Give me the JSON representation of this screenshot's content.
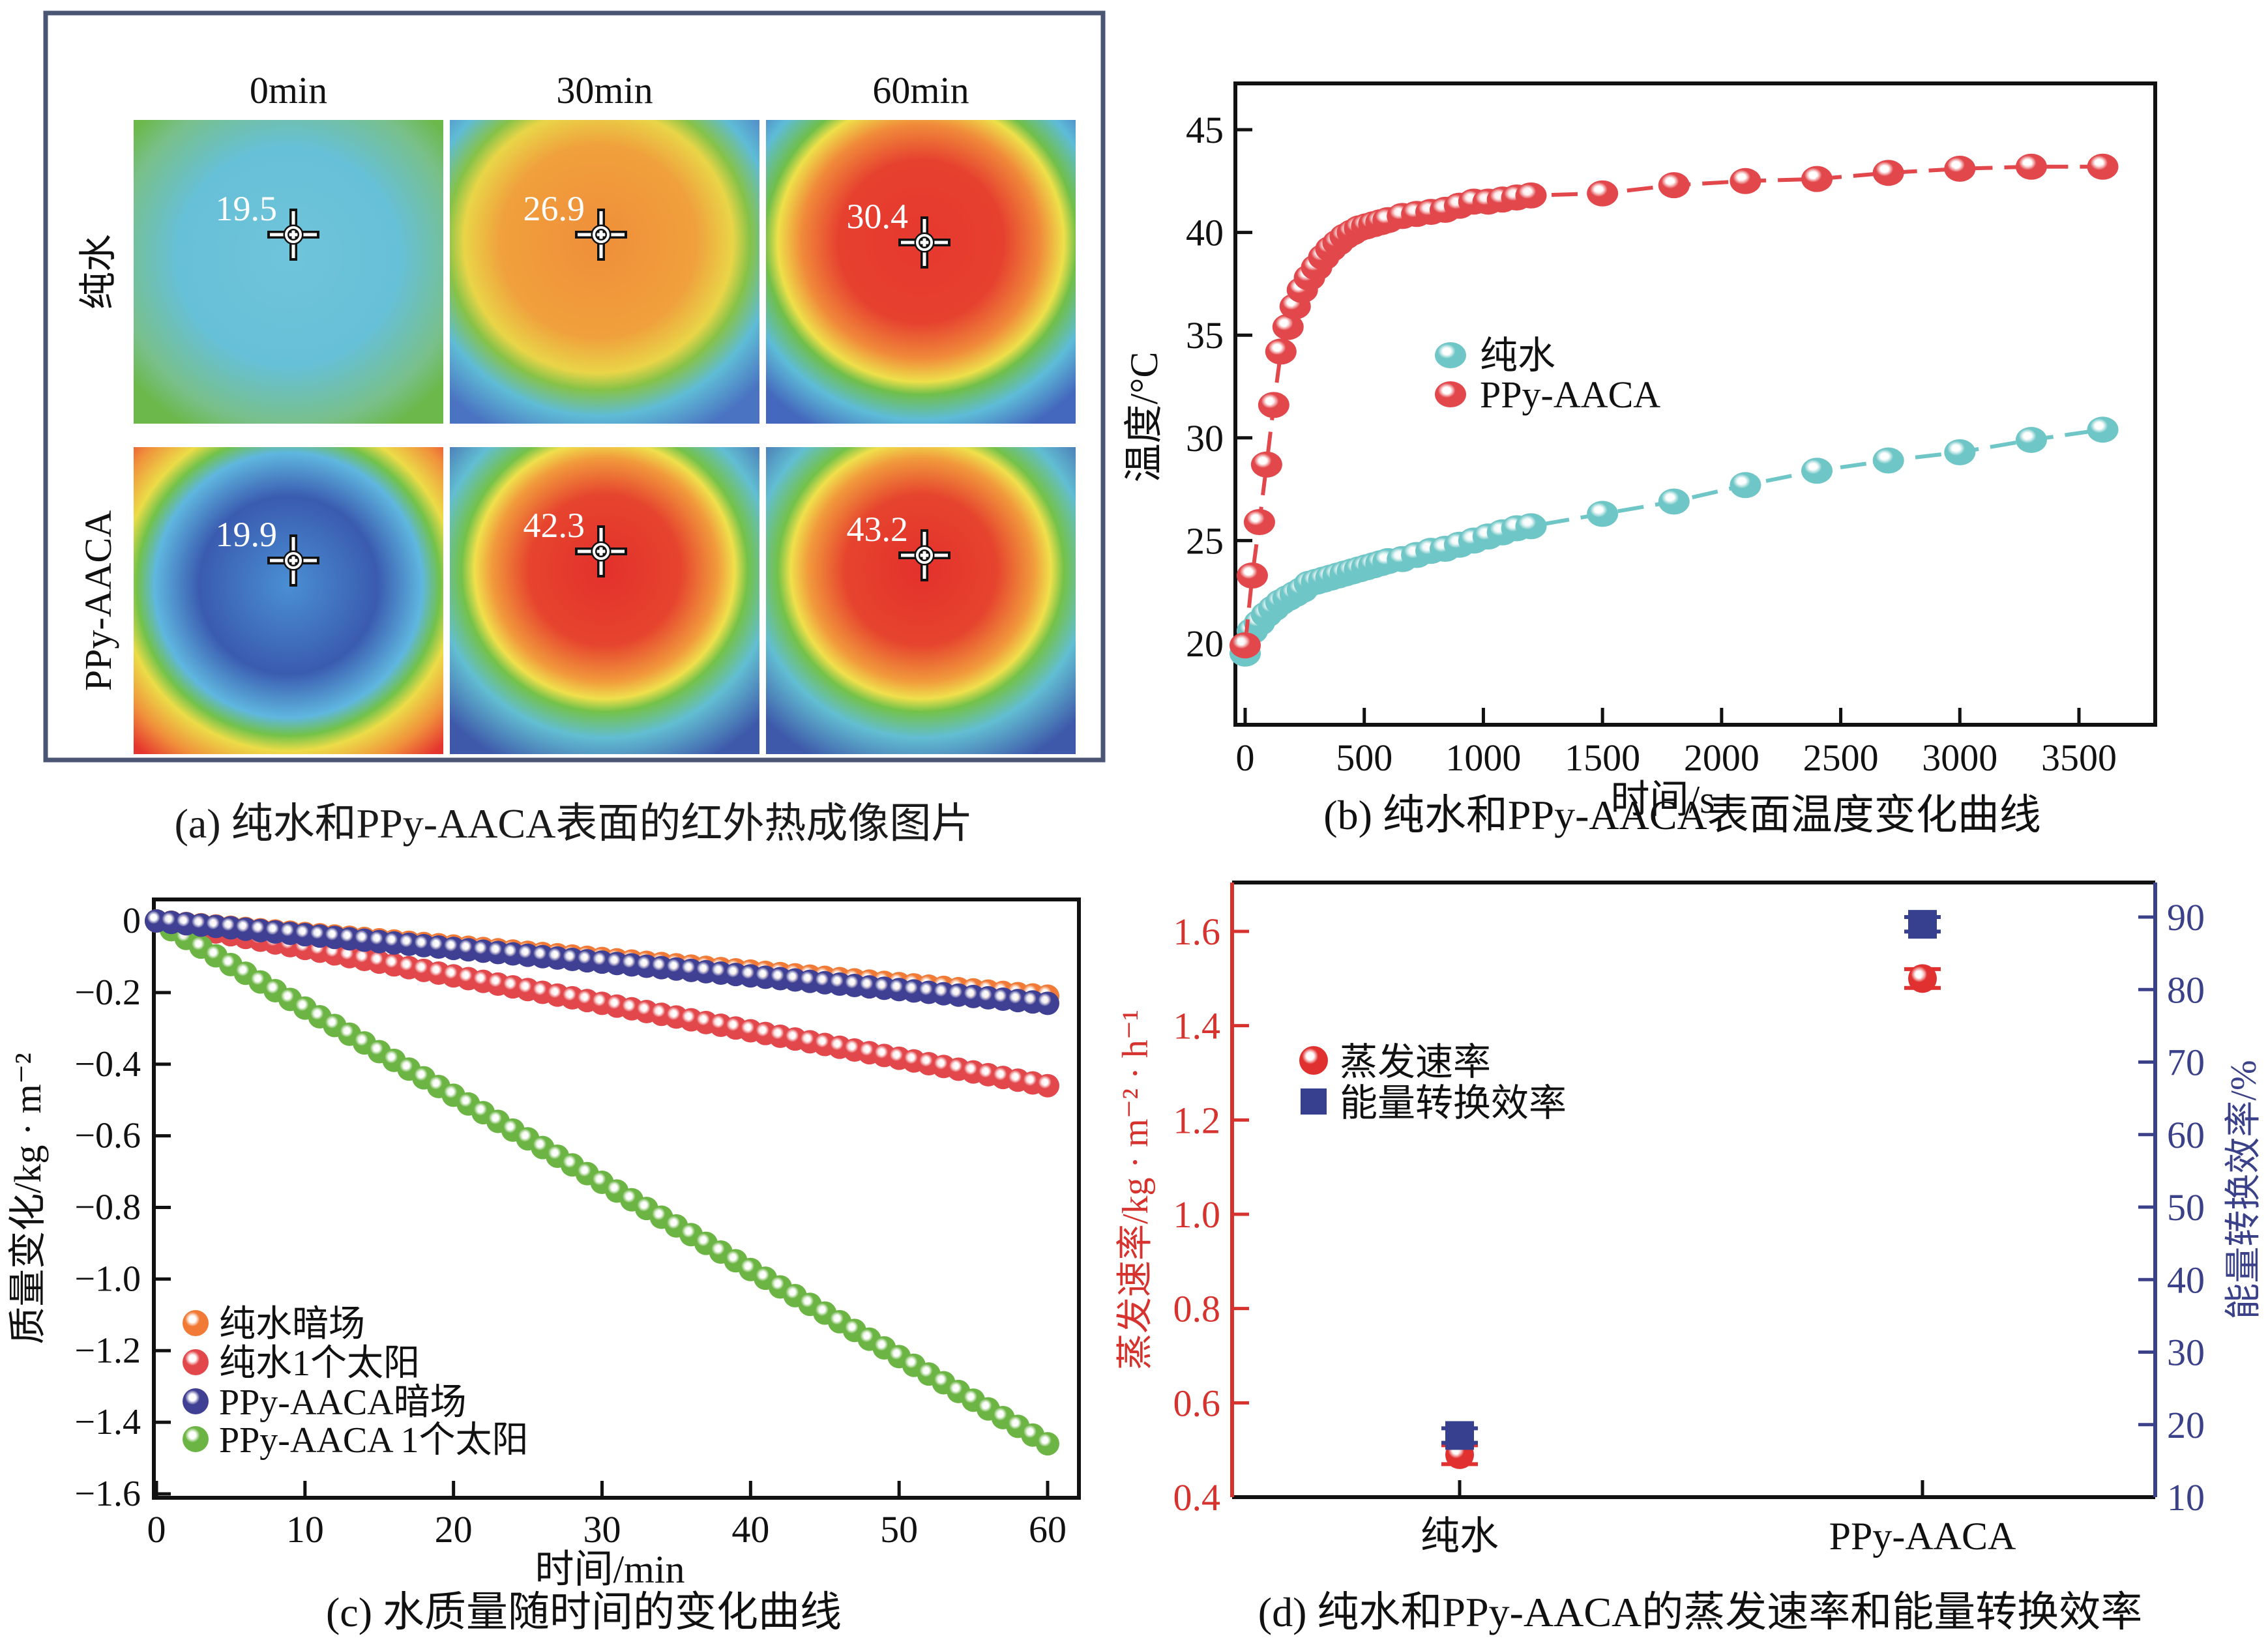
{
  "panel_a": {
    "caption": "(a) 纯水和PPy-AACA表面的红外热成像图片",
    "column_labels": [
      "0min",
      "30min",
      "60min"
    ],
    "row_labels": [
      "纯水",
      "PPy-AACA"
    ],
    "readings": [
      [
        "19.5",
        "26.9",
        "30.4"
      ],
      [
        "19.9",
        "42.3",
        "43.2"
      ]
    ],
    "frame_color": "#4b5574"
  },
  "chart_data": [
    {
      "id": "b",
      "type": "line",
      "title": "(b) 纯水和PPy-AACA表面温度变化曲线",
      "xlabel": "时间/s",
      "ylabel": "温度/°C",
      "xlim": [
        -30,
        3800
      ],
      "ylim": [
        17.5,
        47.5
      ],
      "xticks": [
        0,
        500,
        1000,
        1500,
        2000,
        2500,
        3000,
        3500
      ],
      "yticks": [
        20,
        25,
        30,
        35,
        40,
        45
      ],
      "legend": "center-left",
      "grid": false,
      "series": [
        {
          "name": "纯水",
          "color": "#6fc6c6",
          "x": [
            0,
            30,
            60,
            90,
            120,
            150,
            180,
            210,
            240,
            270,
            300,
            330,
            360,
            390,
            420,
            450,
            480,
            510,
            540,
            570,
            600,
            660,
            720,
            780,
            840,
            900,
            960,
            1020,
            1080,
            1140,
            1200,
            1500,
            1800,
            2100,
            2400,
            2700,
            3000,
            3300,
            3600
          ],
          "y": [
            19.5,
            20.6,
            21.0,
            21.4,
            21.7,
            22.0,
            22.2,
            22.4,
            22.6,
            22.9,
            23.0,
            23.1,
            23.2,
            23.3,
            23.4,
            23.5,
            23.6,
            23.7,
            23.8,
            23.9,
            24.0,
            24.1,
            24.3,
            24.5,
            24.6,
            24.8,
            25.0,
            25.2,
            25.4,
            25.6,
            25.7,
            26.3,
            26.9,
            27.7,
            28.4,
            28.9,
            29.3,
            29.9,
            30.4
          ]
        },
        {
          "name": "PPy-AACA",
          "color": "#e2474b",
          "x": [
            0,
            30,
            60,
            90,
            120,
            150,
            180,
            210,
            240,
            270,
            300,
            330,
            360,
            390,
            420,
            450,
            480,
            510,
            540,
            570,
            600,
            660,
            720,
            780,
            840,
            900,
            960,
            1020,
            1080,
            1140,
            1200,
            1500,
            1800,
            2100,
            2400,
            2700,
            3000,
            3300,
            3600
          ],
          "y": [
            19.9,
            23.3,
            25.9,
            28.7,
            31.6,
            34.2,
            35.4,
            36.4,
            37.2,
            37.8,
            38.3,
            38.8,
            39.2,
            39.5,
            39.8,
            40.0,
            40.2,
            40.3,
            40.4,
            40.5,
            40.6,
            40.8,
            40.9,
            41.0,
            41.1,
            41.3,
            41.5,
            41.5,
            41.6,
            41.7,
            41.8,
            41.9,
            42.3,
            42.5,
            42.6,
            42.9,
            43.1,
            43.2,
            43.2
          ]
        }
      ]
    },
    {
      "id": "c",
      "type": "line",
      "title": "(c) 水质量随时间的变化曲线",
      "xlabel": "时间/min",
      "ylabel": "质量变化/kg · m⁻²",
      "xlim": [
        0,
        62
      ],
      "ylim": [
        -1.6,
        0.1
      ],
      "xticks": [
        0,
        10,
        20,
        30,
        40,
        50,
        60
      ],
      "yticks": [
        0,
        -0.2,
        -0.4,
        -0.6,
        -0.8,
        -1.0,
        -1.2,
        -1.4,
        -1.6
      ],
      "ytick_labels": [
        "0",
        "−0.2",
        "−0.4",
        "−0.6",
        "−0.8",
        "−1.0",
        "−1.2",
        "−1.4",
        "−1.6"
      ],
      "legend": "bottom-left",
      "grid": false,
      "series": [
        {
          "name": "纯水暗场",
          "color": "#f07a36",
          "x_start": 0,
          "x_end": 60,
          "step": 1,
          "y_end": -0.21,
          "shape": "linear"
        },
        {
          "name": "纯水1个太阳",
          "color": "#e2474b",
          "x_start": 0,
          "x_end": 60,
          "step": 1,
          "y_end": -0.46,
          "shape": "linear"
        },
        {
          "name": "PPy-AACA暗场",
          "color": "#3f3f93",
          "x_start": 0,
          "x_end": 60,
          "step": 1,
          "y_end": -0.23,
          "shape": "linear"
        },
        {
          "name": "PPy-AACA 1个太阳",
          "color": "#6cb545",
          "x_start": 0,
          "x_end": 60,
          "step": 1,
          "y_end": -1.46,
          "shape": "linear"
        }
      ]
    },
    {
      "id": "d",
      "type": "scatter",
      "title": "(d) 纯水和PPy-AACA的蒸发速率和能量转换效率",
      "categories": [
        "纯水",
        "PPy-AACA"
      ],
      "ylabel": "蒸发速率/kg · m⁻² · h⁻¹",
      "ylabel_right": "能量转换效率/%",
      "ylim": [
        0.4,
        1.7
      ],
      "ylim_right": [
        10,
        95
      ],
      "yticks": [
        0.4,
        0.6,
        0.8,
        1.0,
        1.2,
        1.4,
        1.6
      ],
      "yticks_right": [
        10,
        20,
        30,
        40,
        50,
        60,
        70,
        80,
        90
      ],
      "left_axis_color": "#d6332f",
      "right_axis_color": "#3a4189",
      "legend": "upper-left",
      "series": [
        {
          "name": "蒸发速率",
          "axis": "left",
          "marker": "circle",
          "color": "#e0302f",
          "values": [
            0.49,
            1.5
          ],
          "errors": [
            0.02,
            0.02
          ]
        },
        {
          "name": "能量转换效率",
          "axis": "right",
          "marker": "square",
          "color": "#36408f",
          "values": [
            18.5,
            89.0
          ],
          "errors": [
            1.0,
            1.0
          ]
        }
      ]
    }
  ]
}
